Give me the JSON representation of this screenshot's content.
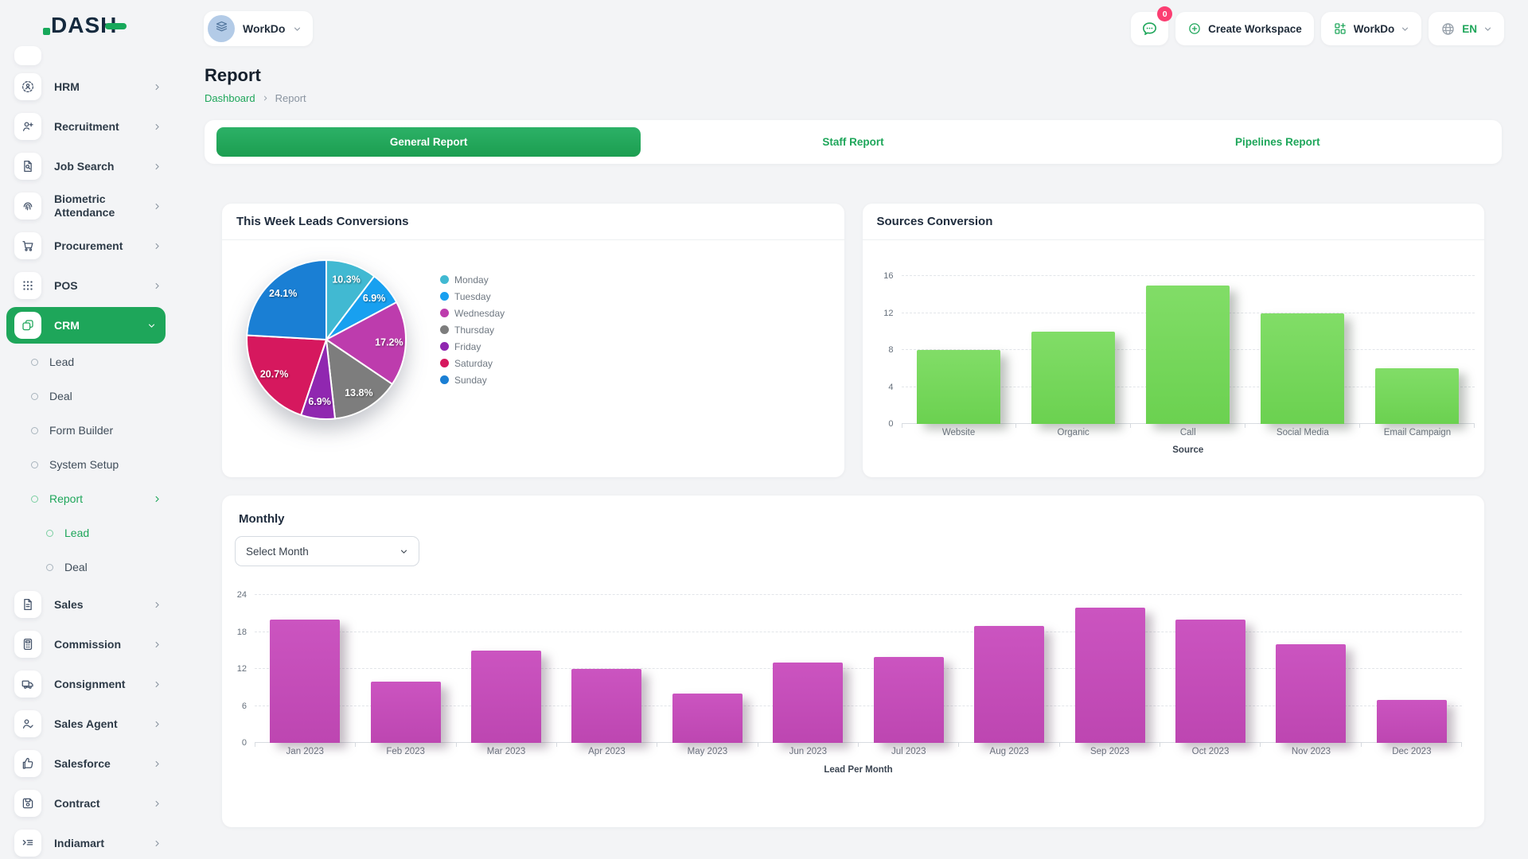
{
  "app": {
    "logo_text": "DASH",
    "accent_color": "#1ea65a"
  },
  "header": {
    "workspace": {
      "label": "WorkDo",
      "avatar_icon": "layers-icon"
    },
    "messages": {
      "icon": "chat-bubble-icon",
      "badge": "0"
    },
    "create_workspace": {
      "label": "Create Workspace",
      "icon": "plus-circle-icon"
    },
    "workspace_switcher": {
      "label": "WorkDo",
      "icon": "grid-plus-icon"
    },
    "language": {
      "label": "EN",
      "icon": "globe-icon"
    }
  },
  "sidebar": {
    "items": [
      {
        "label": "HRM",
        "icon": "hrm-icon",
        "level": 0,
        "chevron": "right"
      },
      {
        "label": "Recruitment",
        "icon": "recruitment-icon",
        "level": 0,
        "chevron": "right"
      },
      {
        "label": "Job Search",
        "icon": "job-search-icon",
        "level": 0,
        "chevron": "right"
      },
      {
        "label": "Biometric Attendance",
        "icon": "biometric-icon",
        "level": 0,
        "chevron": "right"
      },
      {
        "label": "Procurement",
        "icon": "procurement-icon",
        "level": 0,
        "chevron": "right"
      },
      {
        "label": "POS",
        "icon": "pos-icon",
        "level": 0,
        "chevron": "right"
      },
      {
        "label": "CRM",
        "icon": "crm-icon",
        "level": 0,
        "chevron": "down",
        "active": true
      },
      {
        "label": "Lead",
        "level": 1
      },
      {
        "label": "Deal",
        "level": 1
      },
      {
        "label": "Form Builder",
        "level": 1
      },
      {
        "label": "System Setup",
        "level": 1
      },
      {
        "label": "Report",
        "level": 1,
        "chevron": "right",
        "active": true
      },
      {
        "label": "Lead",
        "level": 2,
        "active": true
      },
      {
        "label": "Deal",
        "level": 2
      },
      {
        "label": "Sales",
        "icon": "sales-icon",
        "level": 0,
        "chevron": "right"
      },
      {
        "label": "Commission",
        "icon": "commission-icon",
        "level": 0,
        "chevron": "right"
      },
      {
        "label": "Consignment",
        "icon": "consignment-icon",
        "level": 0,
        "chevron": "right"
      },
      {
        "label": "Sales Agent",
        "icon": "sales-agent-icon",
        "level": 0,
        "chevron": "right"
      },
      {
        "label": "Salesforce",
        "icon": "salesforce-icon",
        "level": 0,
        "chevron": "right"
      },
      {
        "label": "Contract",
        "icon": "contract-icon",
        "level": 0,
        "chevron": "right"
      },
      {
        "label": "Indiamart",
        "icon": "indiamart-icon",
        "level": 0,
        "chevron": "right"
      }
    ]
  },
  "page": {
    "title": "Report",
    "breadcrumb": [
      "Dashboard",
      "Report"
    ]
  },
  "tabs": [
    {
      "label": "General Report",
      "active": true
    },
    {
      "label": "Staff Report",
      "active": false
    },
    {
      "label": "Pipelines Report",
      "active": false
    }
  ],
  "cards": {
    "monthly": {
      "select_label": "Select Month"
    }
  },
  "chart_data": [
    {
      "type": "pie",
      "title": "This Week Leads Conversions",
      "labels": [
        "Monday",
        "Tuesday",
        "Wednesday",
        "Thursday",
        "Friday",
        "Saturday",
        "Sunday"
      ],
      "values": [
        10.3,
        6.9,
        17.2,
        13.8,
        6.9,
        20.7,
        24.1
      ],
      "display_labels": [
        "10.3%",
        "6.9%",
        "17.2%",
        "13.8%",
        "6.9%",
        "20.7%",
        "24.1%"
      ],
      "colors": [
        "#41b9d2",
        "#18a0f0",
        "#bd3cad",
        "#7d7d7d",
        "#9027b0",
        "#d6185e",
        "#1a7fd4"
      ],
      "start_angle": "top",
      "direction": "clockwise",
      "legend_position": "right"
    },
    {
      "type": "bar",
      "title": "Sources Conversion",
      "categories": [
        "Website",
        "Organic",
        "Call",
        "Social Media",
        "Email Campaign"
      ],
      "values": [
        8,
        10,
        15,
        12,
        6
      ],
      "xlabel": "Source",
      "ylabel": "",
      "ylim": [
        0,
        16
      ],
      "ytick_step": 4,
      "grid": true,
      "bar_color": "#74d558"
    },
    {
      "type": "bar",
      "title": "Monthly",
      "categories": [
        "Jan 2023",
        "Feb 2023",
        "Mar 2023",
        "Apr 2023",
        "May 2023",
        "Jun 2023",
        "Jul 2023",
        "Aug 2023",
        "Sep 2023",
        "Oct 2023",
        "Nov 2023",
        "Dec 2023"
      ],
      "values": [
        20,
        10,
        15,
        12,
        8,
        13,
        14,
        19,
        22,
        20,
        16,
        7
      ],
      "xlabel": "Lead Per Month",
      "ylabel": "",
      "ylim": [
        0,
        24
      ],
      "ytick_step": 6,
      "grid": true,
      "bar_color": "#c44eb9"
    }
  ]
}
